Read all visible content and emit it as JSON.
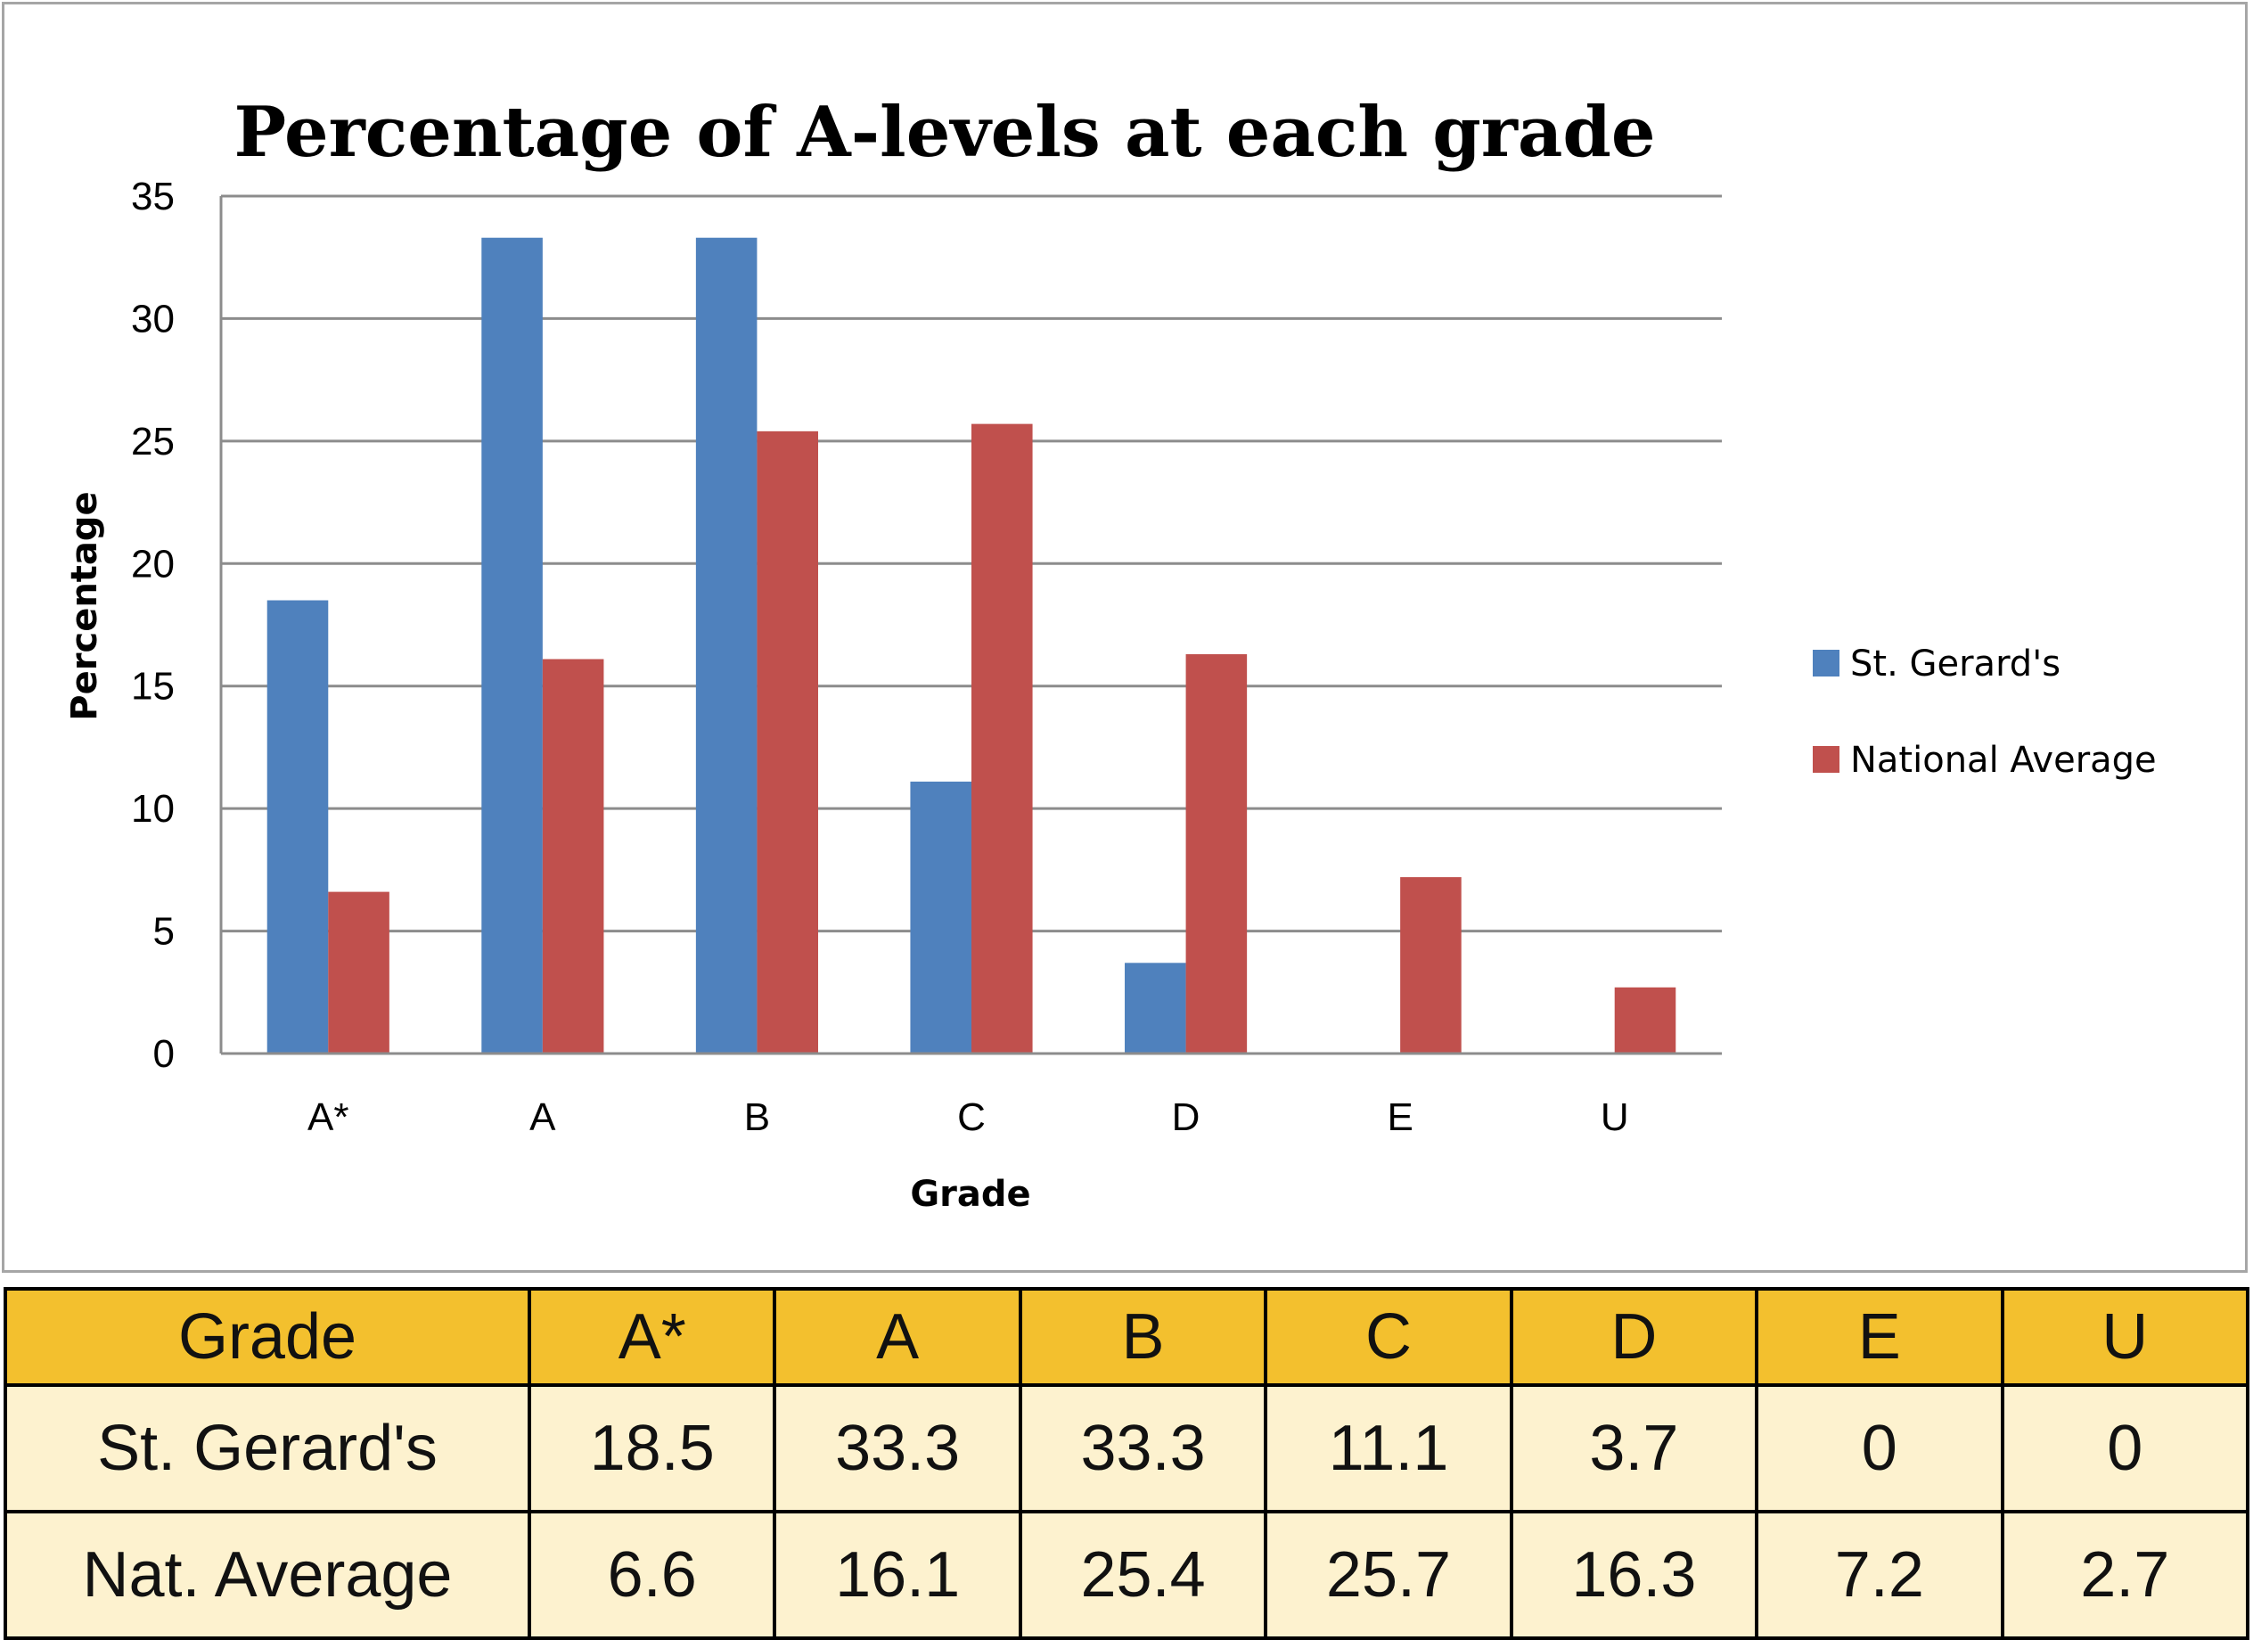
{
  "chart_data": {
    "type": "bar",
    "title": "Percentage of A-levels at each grade",
    "xlabel": "Grade",
    "ylabel": "Percentage",
    "categories": [
      "A*",
      "A",
      "B",
      "C",
      "D",
      "E",
      "U"
    ],
    "series": [
      {
        "name": "St. Gerard's",
        "values": [
          18.5,
          33.3,
          33.3,
          11.1,
          3.7,
          0,
          0
        ],
        "color": "#4f81bd"
      },
      {
        "name": "National Average",
        "values": [
          6.6,
          16.1,
          25.4,
          25.7,
          16.3,
          7.2,
          2.7
        ],
        "color": "#c0504d"
      }
    ],
    "ylim": [
      0,
      35
    ],
    "yticks": [
      "0",
      "5",
      "10",
      "15",
      "20",
      "25",
      "30",
      "35"
    ],
    "grid": true,
    "legend_position": "right"
  },
  "table": {
    "header": [
      "Grade",
      "A*",
      "A",
      "B",
      "C",
      "D",
      "E",
      "U"
    ],
    "rows": [
      [
        "St. Gerard's",
        "18.5",
        "33.3",
        "33.3",
        "11.1",
        "3.7",
        "0",
        "0"
      ],
      [
        "Nat. Average",
        "6.6",
        "16.1",
        "25.4",
        "25.7",
        "16.3",
        "7.2",
        "2.7"
      ]
    ],
    "header_color": "#f3c02e",
    "body_color": "#fdf2cf"
  }
}
